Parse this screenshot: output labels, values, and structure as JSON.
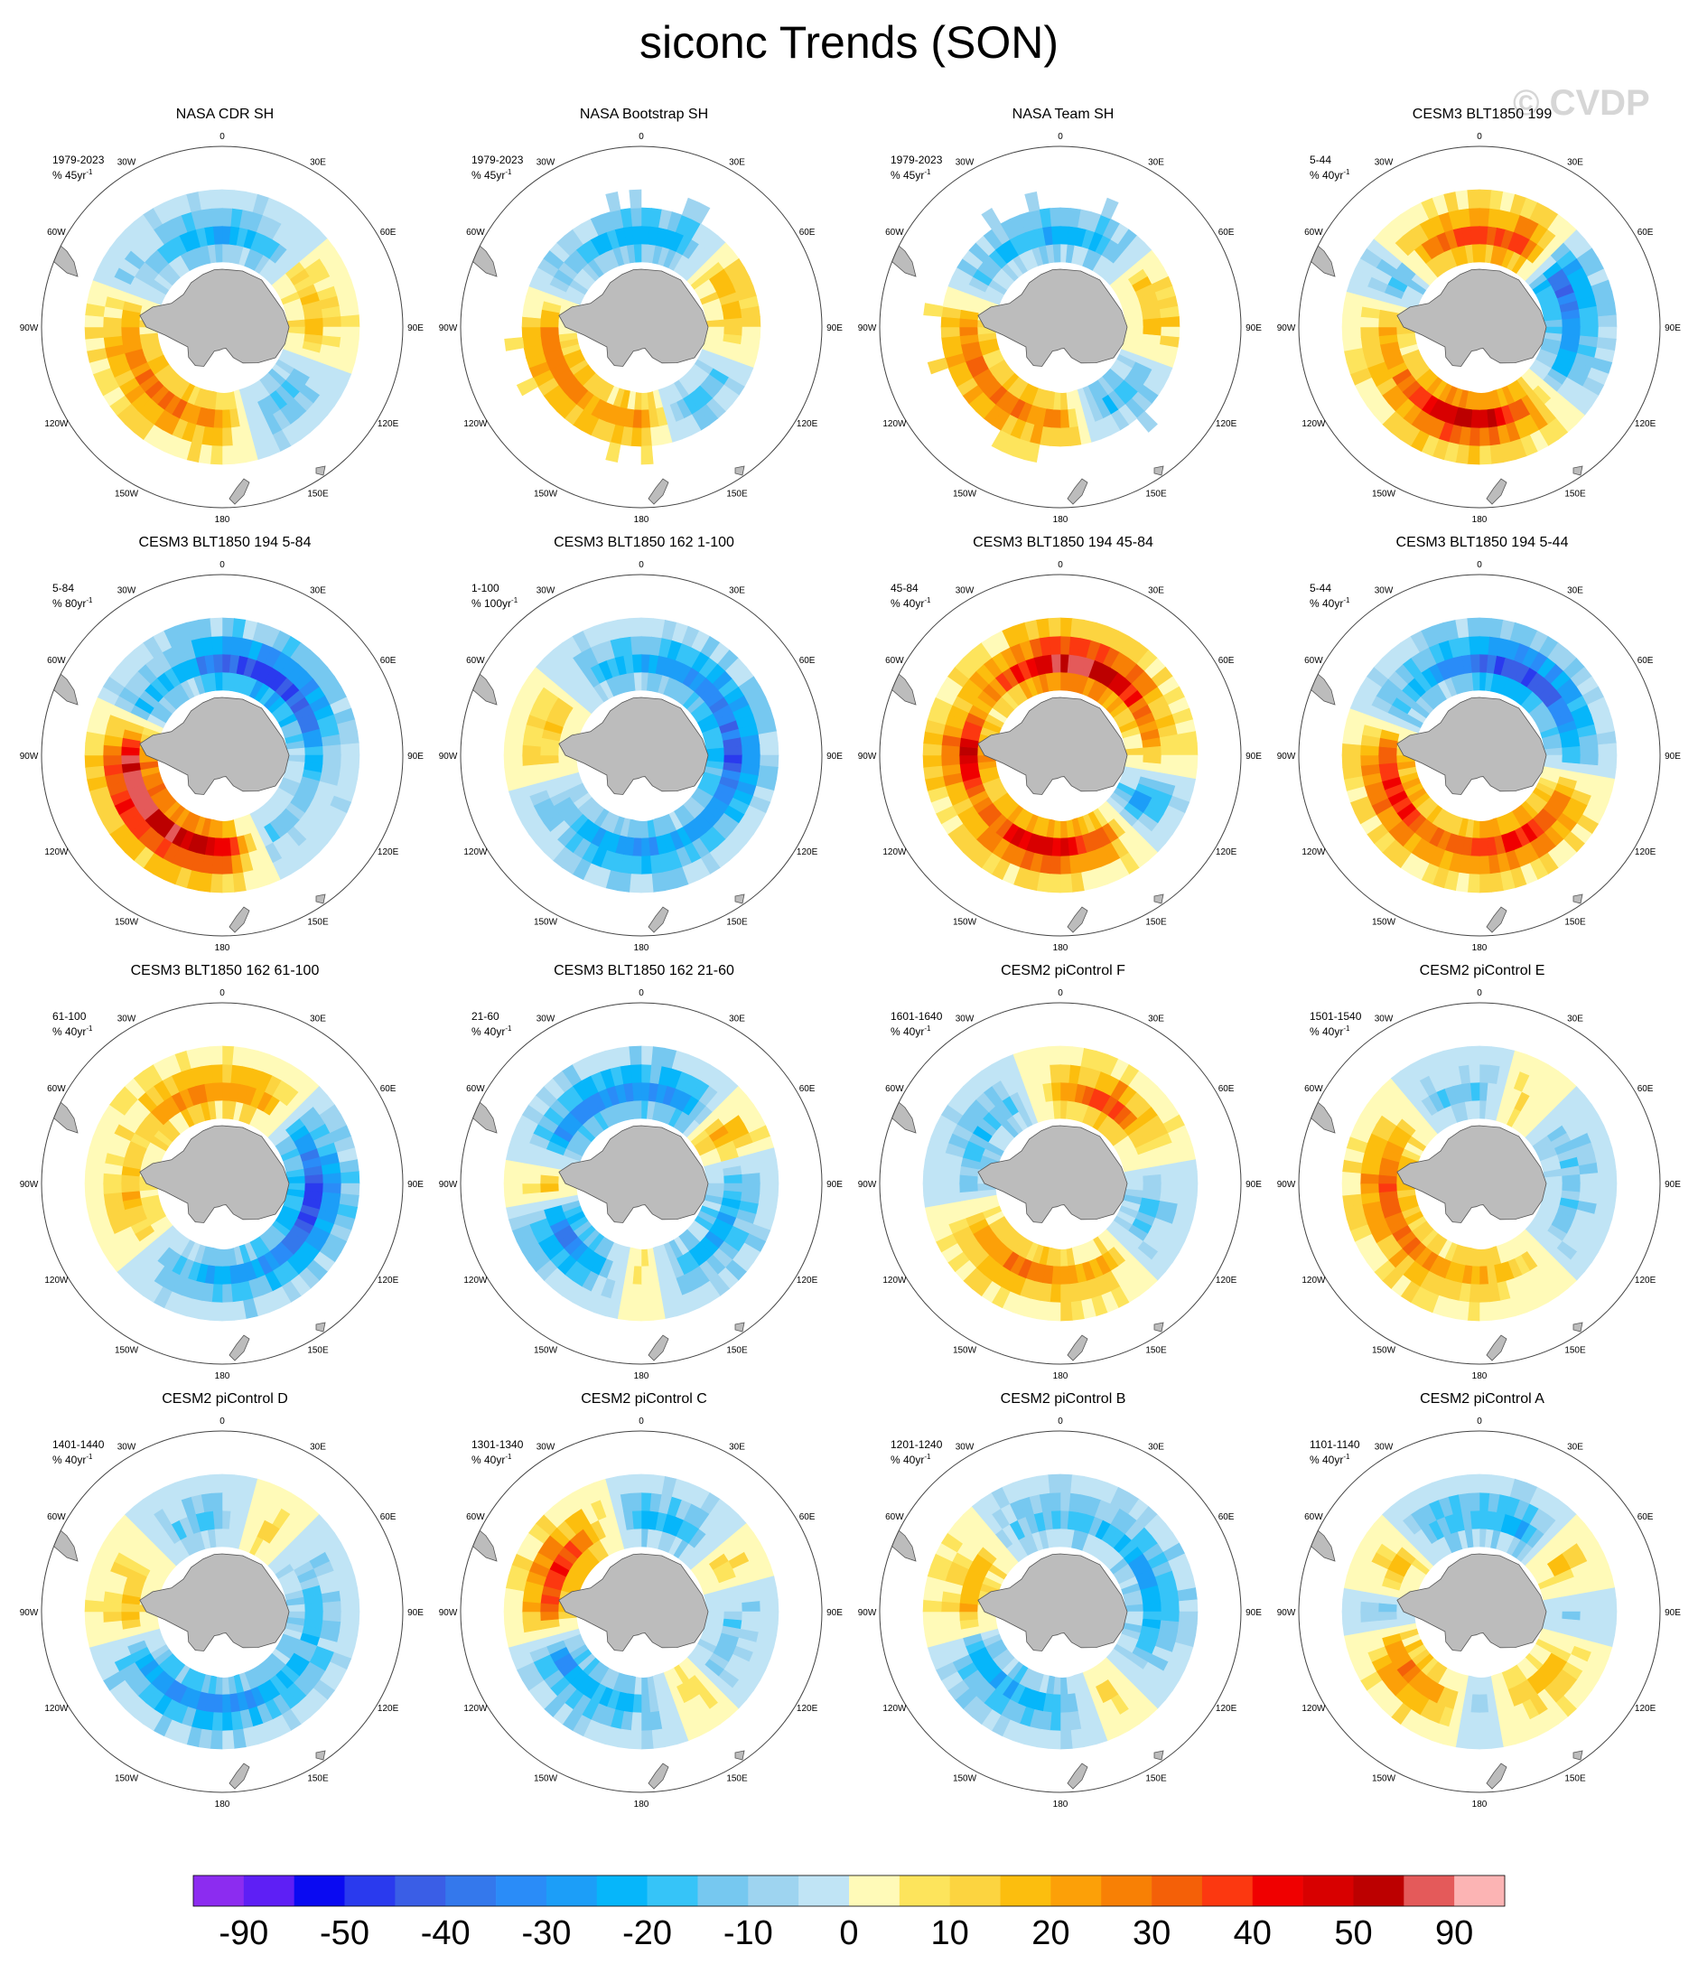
{
  "figure": {
    "title": "siconc Trends (SON)",
    "watermark": "© CVDP"
  },
  "map": {
    "lon_labels": [
      "0",
      "30E",
      "60E",
      "90E",
      "120E",
      "150E",
      "180",
      "150W",
      "120W",
      "90W",
      "60W",
      "30W"
    ],
    "land_color": "#bcbcbc",
    "circle_color": "#444444"
  },
  "chart_data": {
    "type": "heatmap",
    "projection": "south-polar-stereographic",
    "variable": "siconc",
    "season": "SON",
    "panels": [
      {
        "title": "NASA CDR SH",
        "period": "1979-2023",
        "units": "% 45yr",
        "pattern": [
          -0.4,
          -0.3,
          0.2,
          0.3,
          -0.2,
          -0.3,
          0.4,
          0.5,
          0.5,
          0.4,
          -0.2,
          -0.3
        ],
        "patchy": false
      },
      {
        "title": "NASA Bootstrap SH",
        "period": "1979-2023",
        "units": "% 45yr",
        "pattern": [
          -0.4,
          -0.3,
          0.3,
          0.3,
          -0.2,
          -0.3,
          0.4,
          0.4,
          0.5,
          0.4,
          -0.2,
          -0.3
        ],
        "patchy": true
      },
      {
        "title": "NASA Team SH",
        "period": "1979-2023",
        "units": "% 45yr",
        "pattern": [
          -0.4,
          -0.3,
          0.2,
          0.3,
          -0.2,
          -0.3,
          0.4,
          0.5,
          0.5,
          0.4,
          -0.2,
          -0.3
        ],
        "patchy": true
      },
      {
        "title": "CESM3 BLT1850 199",
        "period": "5-44",
        "units": "% 40yr",
        "pattern": [
          0.6,
          0.6,
          -0.7,
          -0.5,
          -0.3,
          0.5,
          0.9,
          0.8,
          0.4,
          0.3,
          -0.3,
          0.5
        ],
        "patchy": false
      },
      {
        "title": "CESM3 BLT1850 194 5-84",
        "period": "5-84",
        "units": "% 80yr",
        "pattern": [
          -0.7,
          -0.8,
          -0.7,
          -0.3,
          -0.2,
          -0.2,
          0.8,
          0.9,
          1.0,
          0.9,
          -0.3,
          -0.3
        ],
        "patchy": false
      },
      {
        "title": "CESM3 BLT1850 162 1-100",
        "period": "1-100",
        "units": "% 100yr",
        "pattern": [
          -0.4,
          -0.5,
          -0.6,
          -0.7,
          -0.5,
          -0.4,
          -0.5,
          -0.4,
          -0.2,
          0.2,
          0.2,
          -0.3
        ],
        "patchy": false
      },
      {
        "title": "CESM3 BLT1850 194 45-84",
        "period": "45-84",
        "units": "% 40yr",
        "pattern": [
          1.0,
          0.9,
          0.5,
          0.3,
          -0.6,
          0.5,
          0.8,
          0.7,
          0.4,
          0.9,
          0.3,
          0.6
        ],
        "patchy": false
      },
      {
        "title": "CESM3 BLT1850 194 5-44",
        "period": "5-44",
        "units": "% 40yr",
        "pattern": [
          -0.7,
          -0.8,
          -0.6,
          -0.3,
          0.5,
          0.7,
          0.6,
          0.5,
          0.7,
          0.6,
          -0.3,
          -0.4
        ],
        "patchy": false
      },
      {
        "title": "CESM3 BLT1850 162 61-100",
        "period": "61-100",
        "units": "% 40yr",
        "pattern": [
          0.4,
          0.3,
          -0.4,
          -0.8,
          -0.7,
          -0.5,
          -0.4,
          -0.3,
          0.2,
          0.3,
          0.2,
          0.4
        ],
        "patchy": false
      },
      {
        "title": "CESM3 BLT1850 162 21-60",
        "period": "21-60",
        "units": "% 40yr",
        "pattern": [
          -0.5,
          -0.5,
          0.4,
          -0.3,
          -0.4,
          -0.3,
          0.2,
          -0.4,
          -0.7,
          0.3,
          -0.5,
          -0.5
        ],
        "patchy": false
      },
      {
        "title": "CESM2 piControl F",
        "period": "1601-1640",
        "units": "% 40yr",
        "pattern": [
          0.3,
          0.6,
          0.3,
          -0.2,
          -0.3,
          0.3,
          0.4,
          0.5,
          0.3,
          -0.2,
          -0.3,
          -0.2
        ],
        "patchy": false
      },
      {
        "title": "CESM2 piControl E",
        "period": "1501-1540",
        "units": "% 40yr",
        "pattern": [
          -0.2,
          0.2,
          -0.2,
          -0.2,
          -0.2,
          0.2,
          0.3,
          0.4,
          0.5,
          0.6,
          0.3,
          -0.2
        ],
        "patchy": false
      },
      {
        "title": "CESM2 piControl D",
        "period": "1401-1440",
        "units": "% 40yr",
        "pattern": [
          -0.2,
          0.2,
          -0.2,
          -0.3,
          -0.3,
          -0.4,
          -0.5,
          -0.5,
          -0.4,
          0.3,
          0.2,
          -0.2
        ],
        "patchy": false
      },
      {
        "title": "CESM2 piControl C",
        "period": "1301-1340",
        "units": "% 40yr",
        "pattern": [
          -0.4,
          -0.3,
          0.2,
          -0.2,
          -0.2,
          0.2,
          -0.3,
          -0.4,
          -0.5,
          0.5,
          0.7,
          0.3
        ],
        "patchy": false
      },
      {
        "title": "CESM2 piControl B",
        "period": "1201-1240",
        "units": "% 40yr",
        "pattern": [
          -0.3,
          -0.3,
          -0.4,
          -0.4,
          -0.2,
          0.2,
          -0.3,
          -0.4,
          -0.4,
          0.3,
          0.3,
          -0.2
        ],
        "patchy": false
      },
      {
        "title": "CESM2 piControl A",
        "period": "1101-1140",
        "units": "% 40yr",
        "pattern": [
          -0.3,
          -0.4,
          0.3,
          -0.2,
          0.2,
          0.3,
          -0.2,
          0.4,
          0.5,
          -0.2,
          0.3,
          -0.3
        ],
        "patchy": false
      }
    ],
    "colorbar": {
      "colors": [
        "#8c2cf0",
        "#5e1ff5",
        "#0a0af2",
        "#2a3aee",
        "#3a5ee6",
        "#3478ec",
        "#2a8cf8",
        "#1c9ef8",
        "#06b6fa",
        "#36c4f8",
        "#76c8f0",
        "#9ed4f0",
        "#c0e4f5",
        "#fffab8",
        "#fde45c",
        "#fcd440",
        "#fcbe0e",
        "#fca008",
        "#f88005",
        "#f46008",
        "#fc3810",
        "#f00000",
        "#d80000",
        "#bc0000",
        "#e45a5a",
        "#fcb4b4"
      ],
      "labels": [
        "-90",
        "-50",
        "-40",
        "-30",
        "-20",
        "-10",
        "0",
        "10",
        "20",
        "30",
        "40",
        "50",
        "90"
      ]
    }
  }
}
